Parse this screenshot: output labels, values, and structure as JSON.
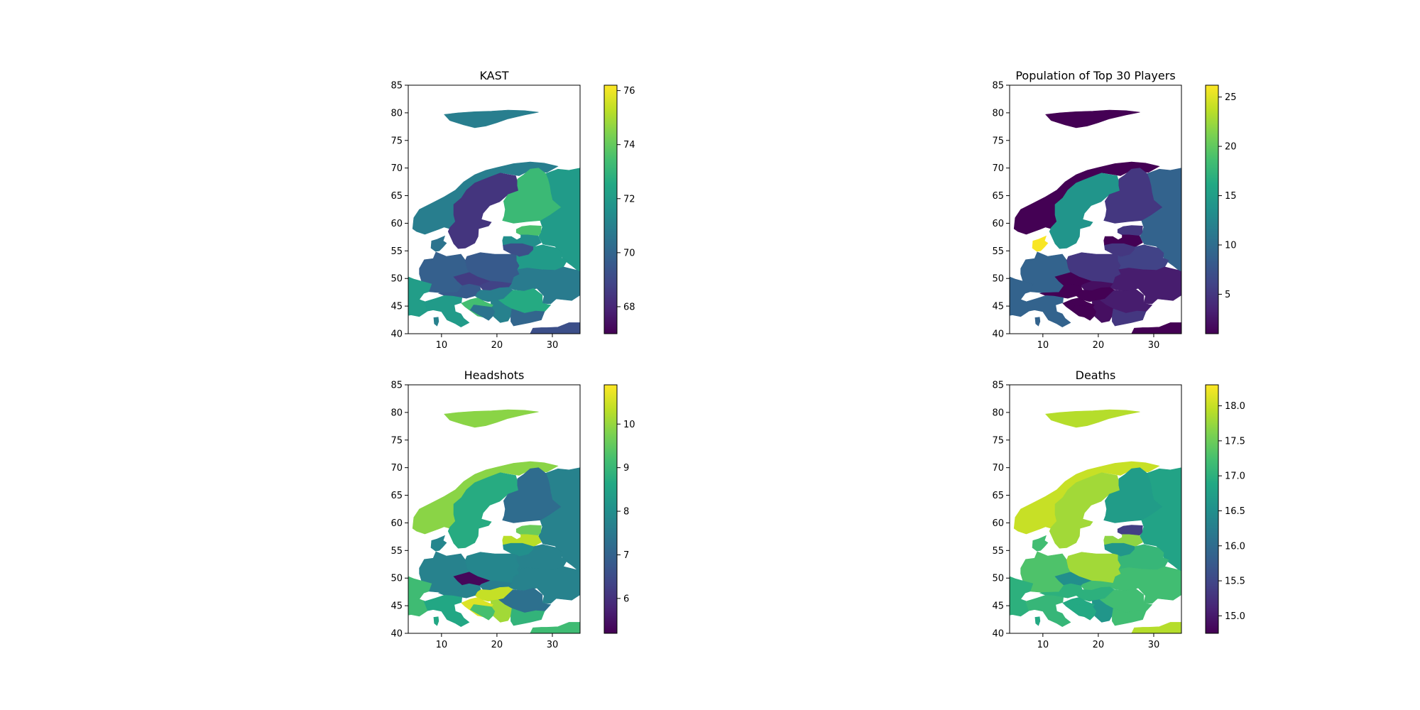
{
  "panels": [
    {
      "title": "KAST",
      "xlim": [
        4,
        35
      ],
      "ylim": [
        40,
        85
      ],
      "xticks": [
        "10",
        "20",
        "30"
      ],
      "yticks": [
        "40",
        "45",
        "50",
        "55",
        "60",
        "65",
        "70",
        "75",
        "80",
        "85"
      ],
      "colorbar": {
        "min": 67.0,
        "max": 76.2,
        "ticks": [
          "68",
          "70",
          "72",
          "74",
          "76"
        ],
        "tick_values": [
          68,
          70,
          72,
          74,
          76
        ]
      },
      "regions": {
        "svalbard": 70.9,
        "norway": 70.9,
        "sweden": 68.4,
        "finland": 73.2,
        "russia": 72.0,
        "estonia": 73.5,
        "latvia": 71.5,
        "lithuania": 69.2,
        "denmark": 70.5,
        "germany": 69.8,
        "poland": 69.6,
        "czechia": 68.6,
        "slovakia": 68.8,
        "austria": 69.6,
        "ukraine": 70.8,
        "belarus": 72.0,
        "hungary": 70.9,
        "romania": 72.6,
        "serbia": 71.0,
        "croatia": 73.4,
        "bosnia": 70.5,
        "bulgaria": 70.0,
        "turkey": 69.2,
        "france": 72.1,
        "italy": 72.0,
        "corsica": 71.0
      }
    },
    {
      "title": "Population of Top 30 Players",
      "xlim": [
        4,
        35
      ],
      "ylim": [
        40,
        85
      ],
      "xticks": [
        "10",
        "20",
        "30"
      ],
      "yticks": [
        "40",
        "45",
        "50",
        "55",
        "60",
        "65",
        "70",
        "75",
        "80",
        "85"
      ],
      "colorbar": {
        "min": 1,
        "max": 26.2,
        "ticks": [
          "5",
          "10",
          "15",
          "20",
          "25"
        ],
        "tick_values": [
          5,
          10,
          15,
          20,
          25
        ]
      },
      "regions": {
        "svalbard": 1,
        "norway": 1,
        "sweden": 14,
        "finland": 5,
        "russia": 9,
        "estonia": 5,
        "latvia": 1,
        "lithuania": 5,
        "denmark": 26,
        "germany": 9,
        "poland": 5,
        "czechia": 1,
        "slovakia": 2,
        "austria": 1,
        "ukraine": 3,
        "belarus": 6,
        "hungary": 1,
        "romania": 3,
        "serbia": 2,
        "croatia": 1,
        "bosnia": 1,
        "bulgaria": 5,
        "turkey": 1,
        "france": 9,
        "italy": 9,
        "corsica": 9
      }
    },
    {
      "title": "Headshots",
      "xlim": [
        4,
        35
      ],
      "ylim": [
        40,
        85
      ],
      "xticks": [
        "10",
        "20",
        "30"
      ],
      "yticks": [
        "40",
        "45",
        "50",
        "55",
        "60",
        "65",
        "70",
        "75",
        "80",
        "85"
      ],
      "colorbar": {
        "min": 5.2,
        "max": 10.9,
        "ticks": [
          "6",
          "7",
          "8",
          "9",
          "10"
        ],
        "tick_values": [
          6,
          7,
          8,
          9,
          10
        ]
      },
      "regions": {
        "svalbard": 9.9,
        "norway": 9.9,
        "sweden": 8.7,
        "finland": 7.2,
        "russia": 7.7,
        "estonia": 9.6,
        "latvia": 10.3,
        "lithuania": 8.0,
        "denmark": 7.8,
        "germany": 7.7,
        "poland": 7.8,
        "czechia": 5.3,
        "slovakia": 7.6,
        "austria": 7.7,
        "ukraine": 7.7,
        "belarus": 7.7,
        "hungary": 10.4,
        "romania": 7.3,
        "serbia": 10.1,
        "croatia": 10.6,
        "bosnia": 9.2,
        "bulgaria": 8.9,
        "turkey": 9.1,
        "france": 9.1,
        "italy": 8.6,
        "corsica": 8.6
      }
    },
    {
      "title": "Deaths",
      "xlim": [
        4,
        35
      ],
      "ylim": [
        40,
        85
      ],
      "xticks": [
        "10",
        "20",
        "30"
      ],
      "yticks": [
        "40",
        "45",
        "50",
        "55",
        "60",
        "65",
        "70",
        "75",
        "80",
        "85"
      ],
      "colorbar": {
        "min": 14.75,
        "max": 18.3,
        "ticks": [
          "15.0",
          "15.5",
          "16.0",
          "16.5",
          "17.0",
          "17.5",
          "18.0"
        ],
        "tick_values": [
          15.0,
          15.5,
          16.0,
          16.5,
          17.0,
          17.5,
          18.0
        ]
      },
      "regions": {
        "svalbard": 17.9,
        "norway": 18.0,
        "sweden": 17.8,
        "finland": 16.7,
        "russia": 16.8,
        "estonia": 15.4,
        "latvia": 17.7,
        "lithuania": 16.6,
        "denmark": 17.2,
        "germany": 17.3,
        "poland": 17.8,
        "czechia": 16.5,
        "slovakia": 17.2,
        "austria": 17.0,
        "ukraine": 17.2,
        "belarus": 17.1,
        "hungary": 17.0,
        "romania": 17.2,
        "serbia": 16.6,
        "croatia": 16.9,
        "bosnia": 16.9,
        "bulgaria": 17.2,
        "turkey": 17.9,
        "france": 17.0,
        "italy": 17.1,
        "corsica": 16.9
      }
    }
  ]
}
